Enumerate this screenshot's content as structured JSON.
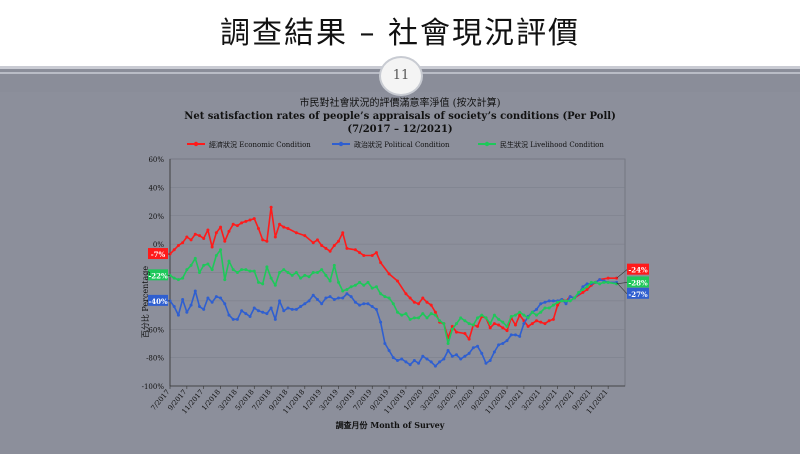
{
  "slide": {
    "title": "調查結果 – 社會現況評價",
    "page_number": "11"
  },
  "chart_data": {
    "type": "line",
    "title_zh": "市民對社會狀況的評價滿意率淨值 (按次計算)",
    "title_en": "Net satisfaction rates of people’s appraisals of society’s conditions (Per Poll)",
    "subtitle": "(7/2017 – 12/2021)",
    "ylabel": "百分比 Percentage",
    "xlabel": "調查月份 Month of Survey",
    "ylim": [
      -100,
      60
    ],
    "yticks": [
      "60%",
      "40%",
      "20%",
      "0%",
      "-20%",
      "-40%",
      "-60%",
      "-80%",
      "-100%"
    ],
    "ytick_values": [
      60,
      40,
      20,
      0,
      -20,
      -40,
      -60,
      -80,
      -100
    ],
    "xticks": [
      "7/2017",
      "9/2017",
      "11/2017",
      "1/2018",
      "3/2018",
      "5/2018",
      "7/2018",
      "9/2018",
      "11/2018",
      "1/2019",
      "3/2019",
      "5/2019",
      "7/2019",
      "9/2019",
      "11/2019",
      "1/2020",
      "3/2020",
      "5/2020",
      "7/2020",
      "9/2020",
      "11/2020",
      "1/2021",
      "3/2021",
      "5/2021",
      "7/2021",
      "9/2021",
      "11/2021"
    ],
    "x_range": [
      0,
      54
    ],
    "legend_position": "top",
    "series": [
      {
        "name": "經濟狀況 Economic Condition",
        "color": "#ff1a1a",
        "start_label": "-7%",
        "end_label": "-24%",
        "points": [
          [
            0,
            -7
          ],
          [
            0.5,
            -4
          ],
          [
            1,
            -1
          ],
          [
            1.5,
            1
          ],
          [
            2,
            5
          ],
          [
            2.5,
            3
          ],
          [
            3,
            7
          ],
          [
            3.5,
            6
          ],
          [
            4,
            4
          ],
          [
            4.5,
            10
          ],
          [
            5,
            -2
          ],
          [
            5.5,
            8
          ],
          [
            6,
            12
          ],
          [
            6.5,
            2
          ],
          [
            7,
            9
          ],
          [
            7.5,
            14
          ],
          [
            8,
            13
          ],
          [
            8.5,
            15
          ],
          [
            9,
            16
          ],
          [
            9.5,
            17
          ],
          [
            10,
            18
          ],
          [
            10.5,
            11
          ],
          [
            11,
            3
          ],
          [
            11.5,
            2
          ],
          [
            12,
            26
          ],
          [
            12.5,
            5
          ],
          [
            13,
            14
          ],
          [
            13.5,
            12
          ],
          [
            14,
            11
          ],
          [
            15,
            8
          ],
          [
            16,
            6
          ],
          [
            17,
            1
          ],
          [
            17.5,
            3
          ],
          [
            18,
            -1
          ],
          [
            18.5,
            -3
          ],
          [
            19,
            -5
          ],
          [
            19.5,
            -1
          ],
          [
            20,
            2
          ],
          [
            20.5,
            8
          ],
          [
            21,
            -3
          ],
          [
            22,
            -4
          ],
          [
            22.5,
            -6
          ],
          [
            23,
            -8
          ],
          [
            24,
            -8
          ],
          [
            24.5,
            -6
          ],
          [
            25,
            -13
          ],
          [
            26,
            -21
          ],
          [
            27,
            -26
          ],
          [
            28,
            -35
          ],
          [
            28.5,
            -38
          ],
          [
            29,
            -41
          ],
          [
            29.5,
            -42
          ],
          [
            30,
            -38
          ],
          [
            30.5,
            -41
          ],
          [
            31,
            -43
          ],
          [
            31.5,
            -48
          ],
          [
            32,
            -55
          ],
          [
            32.5,
            -56
          ],
          [
            33,
            -66
          ],
          [
            33.5,
            -58
          ],
          [
            34,
            -62
          ],
          [
            35,
            -63
          ],
          [
            35.5,
            -67
          ],
          [
            36,
            -57
          ],
          [
            36.5,
            -58
          ],
          [
            37,
            -51
          ],
          [
            37.5,
            -52
          ],
          [
            38,
            -59
          ],
          [
            38.5,
            -56
          ],
          [
            39,
            -57
          ],
          [
            39.5,
            -59
          ],
          [
            40,
            -61
          ],
          [
            40.5,
            -52
          ],
          [
            41,
            -57
          ],
          [
            41.5,
            -50
          ],
          [
            42,
            -54
          ],
          [
            42.5,
            -58
          ],
          [
            43,
            -56
          ],
          [
            43.5,
            -54
          ],
          [
            44,
            -55
          ],
          [
            44.5,
            -56
          ],
          [
            45,
            -54
          ],
          [
            45.5,
            -53
          ],
          [
            46,
            -43
          ],
          [
            46.5,
            -39
          ],
          [
            47,
            -40
          ],
          [
            47.5,
            -37
          ],
          [
            48,
            -38
          ],
          [
            49,
            -34
          ],
          [
            49.5,
            -32
          ],
          [
            50,
            -29
          ],
          [
            50.5,
            -27
          ],
          [
            51,
            -25
          ],
          [
            52,
            -24
          ],
          [
            53,
            -24
          ]
        ]
      },
      {
        "name": "政治狀況 Political Condition",
        "color": "#2f5fd0",
        "start_label": "-40%",
        "end_label": "-27%",
        "points": [
          [
            0,
            -40
          ],
          [
            0.5,
            -44
          ],
          [
            1,
            -50
          ],
          [
            1.5,
            -39
          ],
          [
            2,
            -48
          ],
          [
            2.5,
            -43
          ],
          [
            3,
            -33
          ],
          [
            3.5,
            -44
          ],
          [
            4,
            -46
          ],
          [
            4.5,
            -38
          ],
          [
            5,
            -41
          ],
          [
            5.5,
            -37
          ],
          [
            6,
            -38
          ],
          [
            6.5,
            -42
          ],
          [
            7,
            -50
          ],
          [
            7.5,
            -53
          ],
          [
            8,
            -53
          ],
          [
            8.5,
            -47
          ],
          [
            9,
            -49
          ],
          [
            9.5,
            -51
          ],
          [
            10,
            -45
          ],
          [
            10.5,
            -47
          ],
          [
            11,
            -48
          ],
          [
            11.5,
            -49
          ],
          [
            12,
            -45
          ],
          [
            12.5,
            -53
          ],
          [
            13,
            -40
          ],
          [
            13.5,
            -47
          ],
          [
            14,
            -45
          ],
          [
            14.5,
            -46
          ],
          [
            15,
            -46
          ],
          [
            15.5,
            -44
          ],
          [
            16,
            -42
          ],
          [
            16.5,
            -40
          ],
          [
            17,
            -36
          ],
          [
            17.5,
            -39
          ],
          [
            18,
            -42
          ],
          [
            18.5,
            -38
          ],
          [
            19,
            -37
          ],
          [
            19.5,
            -39
          ],
          [
            20,
            -38
          ],
          [
            20.5,
            -38
          ],
          [
            21,
            -35
          ],
          [
            21.5,
            -37
          ],
          [
            22,
            -41
          ],
          [
            22.5,
            -43
          ],
          [
            23,
            -42
          ],
          [
            23.5,
            -42
          ],
          [
            24,
            -44
          ],
          [
            24.5,
            -46
          ],
          [
            25,
            -55
          ],
          [
            25.5,
            -70
          ],
          [
            26,
            -75
          ],
          [
            26.5,
            -80
          ],
          [
            27,
            -82
          ],
          [
            27.5,
            -81
          ],
          [
            28,
            -83
          ],
          [
            28.5,
            -85
          ],
          [
            29,
            -82
          ],
          [
            29.5,
            -84
          ],
          [
            30,
            -79
          ],
          [
            30.5,
            -81
          ],
          [
            31,
            -83
          ],
          [
            31.5,
            -86
          ],
          [
            32,
            -83
          ],
          [
            32.5,
            -81
          ],
          [
            33,
            -75
          ],
          [
            33.5,
            -79
          ],
          [
            34,
            -78
          ],
          [
            34.5,
            -81
          ],
          [
            35,
            -79
          ],
          [
            35.5,
            -77
          ],
          [
            36,
            -73
          ],
          [
            36.5,
            -72
          ],
          [
            37,
            -77
          ],
          [
            37.5,
            -84
          ],
          [
            38,
            -82
          ],
          [
            38.5,
            -76
          ],
          [
            39,
            -71
          ],
          [
            39.5,
            -70
          ],
          [
            40,
            -68
          ],
          [
            40.5,
            -64
          ],
          [
            41,
            -64
          ],
          [
            41.5,
            -65
          ],
          [
            42,
            -56
          ],
          [
            42.5,
            -51
          ],
          [
            43,
            -48
          ],
          [
            43.5,
            -46
          ],
          [
            44,
            -42
          ],
          [
            44.5,
            -41
          ],
          [
            45,
            -40
          ],
          [
            45.5,
            -40
          ],
          [
            46,
            -40
          ],
          [
            46.5,
            -39
          ],
          [
            47,
            -42
          ],
          [
            47.5,
            -37
          ],
          [
            48,
            -38
          ],
          [
            48.5,
            -35
          ],
          [
            49,
            -30
          ],
          [
            49.5,
            -28
          ],
          [
            50,
            -28
          ],
          [
            50.5,
            -27
          ],
          [
            51,
            -25
          ],
          [
            51.5,
            -26
          ],
          [
            52,
            -27
          ],
          [
            53,
            -27
          ]
        ]
      },
      {
        "name": "民生狀況 Livelihood Condition",
        "color": "#1ec85a",
        "start_label": "-22%",
        "end_label": "-28%",
        "points": [
          [
            0,
            -22
          ],
          [
            0.5,
            -24
          ],
          [
            1,
            -25
          ],
          [
            1.5,
            -24
          ],
          [
            2,
            -18
          ],
          [
            2.5,
            -15
          ],
          [
            3,
            -10
          ],
          [
            3.5,
            -20
          ],
          [
            4,
            -15
          ],
          [
            4.5,
            -14
          ],
          [
            5,
            -18
          ],
          [
            5.5,
            -8
          ],
          [
            6,
            -4
          ],
          [
            6.5,
            -25
          ],
          [
            7,
            -12
          ],
          [
            7.5,
            -18
          ],
          [
            8,
            -20
          ],
          [
            8.5,
            -18
          ],
          [
            9,
            -18
          ],
          [
            9.5,
            -19
          ],
          [
            10,
            -19
          ],
          [
            10.5,
            -27
          ],
          [
            11,
            -28
          ],
          [
            11.5,
            -16
          ],
          [
            12,
            -24
          ],
          [
            12.5,
            -29
          ],
          [
            13,
            -20
          ],
          [
            13.5,
            -18
          ],
          [
            14,
            -20
          ],
          [
            14.5,
            -22
          ],
          [
            15,
            -20
          ],
          [
            15.5,
            -24
          ],
          [
            16,
            -22
          ],
          [
            16.5,
            -23
          ],
          [
            17,
            -20
          ],
          [
            17.5,
            -20
          ],
          [
            18,
            -18
          ],
          [
            18.5,
            -22
          ],
          [
            19,
            -26
          ],
          [
            19.5,
            -15
          ],
          [
            20,
            -27
          ],
          [
            20.5,
            -33
          ],
          [
            21,
            -32
          ],
          [
            21.5,
            -30
          ],
          [
            22,
            -29
          ],
          [
            22.5,
            -27
          ],
          [
            23,
            -29
          ],
          [
            23.5,
            -27
          ],
          [
            24,
            -31
          ],
          [
            24.5,
            -30
          ],
          [
            25,
            -35
          ],
          [
            25.5,
            -37
          ],
          [
            26,
            -38
          ],
          [
            26.5,
            -42
          ],
          [
            27,
            -48
          ],
          [
            27.5,
            -50
          ],
          [
            28,
            -49
          ],
          [
            28.5,
            -53
          ],
          [
            29,
            -52
          ],
          [
            29.5,
            -52
          ],
          [
            30,
            -49
          ],
          [
            30.5,
            -52
          ],
          [
            31,
            -49
          ],
          [
            31.5,
            -50
          ],
          [
            32,
            -54
          ],
          [
            32.5,
            -56
          ],
          [
            33,
            -70
          ],
          [
            33.5,
            -60
          ],
          [
            34,
            -56
          ],
          [
            34.5,
            -52
          ],
          [
            35,
            -54
          ],
          [
            35.5,
            -56
          ],
          [
            36,
            -57
          ],
          [
            36.5,
            -52
          ],
          [
            37,
            -50
          ],
          [
            37.5,
            -52
          ],
          [
            38,
            -56
          ],
          [
            38.5,
            -50
          ],
          [
            39,
            -53
          ],
          [
            39.5,
            -55
          ],
          [
            40,
            -58
          ],
          [
            40.5,
            -51
          ],
          [
            41,
            -50
          ],
          [
            41.5,
            -48
          ],
          [
            42,
            -50
          ],
          [
            42.5,
            -52
          ],
          [
            43,
            -48
          ],
          [
            43.5,
            -50
          ],
          [
            44,
            -48
          ],
          [
            44.5,
            -45
          ],
          [
            45,
            -45
          ],
          [
            45.5,
            -43
          ],
          [
            46,
            -41
          ],
          [
            46.5,
            -40
          ],
          [
            47,
            -40
          ],
          [
            47.5,
            -40
          ],
          [
            48,
            -38
          ],
          [
            48.5,
            -34
          ],
          [
            49,
            -32
          ],
          [
            49.5,
            -30
          ],
          [
            50,
            -27
          ],
          [
            50.5,
            -27
          ],
          [
            51,
            -28
          ],
          [
            51.5,
            -27
          ],
          [
            52,
            -27
          ],
          [
            53,
            -28
          ]
        ]
      }
    ]
  }
}
